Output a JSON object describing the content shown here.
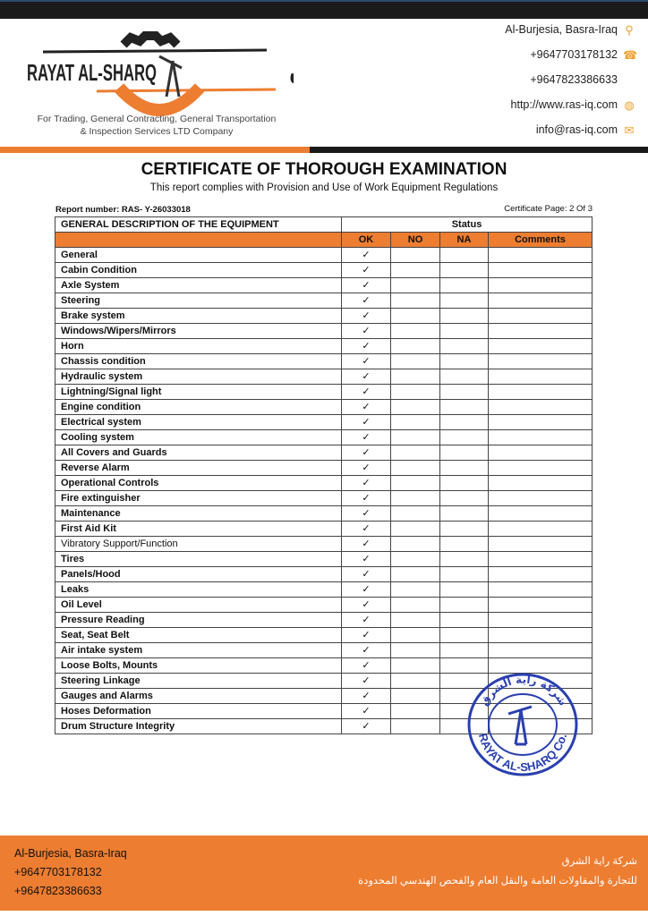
{
  "header": {
    "logo_text_en": "RAYAT AL-SHARQ",
    "logo_text_ar": "راية الشرق",
    "tagline_line1": "For Trading, General Contracting, General Transportation",
    "tagline_line2": "& Inspection Services LTD Company",
    "contact": [
      {
        "text": "Al-Burjesia, Basra-Iraq",
        "icon": "location-pin-icon"
      },
      {
        "text": "+9647703178132",
        "icon": "phone-icon"
      },
      {
        "text": "+9647823386633",
        "icon": ""
      },
      {
        "text": "http://www.ras-iq.com",
        "icon": "globe-icon"
      },
      {
        "text": "info@ras-iq.com",
        "icon": "mail-icon"
      }
    ]
  },
  "document": {
    "title": "CERTIFICATE OF THOROUGH EXAMINATION",
    "subtitle": "This report complies with Provision and Use of Work Equipment Regulations",
    "report_number": "Report number: RAS- Y-26033018",
    "certificate_page": "Certificate Page: 2 Of 3"
  },
  "table": {
    "desc_header": "GENERAL DESCRIPTION OF THE EQUIPMENT",
    "status_header": "Status",
    "columns": [
      "OK",
      "NO",
      "NA",
      "Comments"
    ],
    "check_mark": "✓",
    "rows": [
      {
        "item": "General",
        "status": "OK"
      },
      {
        "item": "Cabin Condition",
        "status": "OK"
      },
      {
        "item": "Axle System",
        "status": "OK"
      },
      {
        "item": "Steering",
        "status": "OK"
      },
      {
        "item": "Brake system",
        "status": "OK"
      },
      {
        "item": "Windows/Wipers/Mirrors",
        "status": "OK"
      },
      {
        "item": "Horn",
        "status": "OK"
      },
      {
        "item": "Chassis condition",
        "status": "OK"
      },
      {
        "item": "Hydraulic system",
        "status": "OK"
      },
      {
        "item": "Lightning/Signal light",
        "status": "OK"
      },
      {
        "item": "Engine condition",
        "status": "OK"
      },
      {
        "item": "Electrical system",
        "status": "OK"
      },
      {
        "item": "Cooling system",
        "status": "OK"
      },
      {
        "item": "All Covers and Guards",
        "status": "OK"
      },
      {
        "item": "Reverse Alarm",
        "status": "OK"
      },
      {
        "item": "Operational Controls",
        "status": "OK"
      },
      {
        "item": "Fire extinguisher",
        "status": "OK"
      },
      {
        "item": "Maintenance",
        "status": "OK"
      },
      {
        "item": "First Aid Kit",
        "status": "OK"
      },
      {
        "item": "Vibratory Support/Function",
        "status": "OK"
      },
      {
        "item": "Tires",
        "status": "OK"
      },
      {
        "item": "Panels/Hood",
        "status": "OK"
      },
      {
        "item": "Leaks",
        "status": "OK"
      },
      {
        "item": "Oil Level",
        "status": "OK"
      },
      {
        "item": "Pressure Reading",
        "status": "OK"
      },
      {
        "item": "Seat, Seat Belt",
        "status": "OK"
      },
      {
        "item": "Air intake system",
        "status": "OK"
      },
      {
        "item": "Loose Bolts, Mounts",
        "status": "OK"
      },
      {
        "item": "Steering Linkage",
        "status": "OK"
      },
      {
        "item": "Gauges and Alarms",
        "status": "OK"
      },
      {
        "item": "Hoses Deformation",
        "status": "OK"
      },
      {
        "item": "Drum Structure Integrity",
        "status": "OK"
      }
    ]
  },
  "stamp": {
    "text_en": "RAYAT AL-SHARQ Co.",
    "text_ar": "شركة راية الشرق"
  },
  "footer": {
    "left": [
      "Al-Burjesia, Basra-Iraq",
      "+9647703178132",
      "+9647823386633"
    ],
    "right": [
      "شركة راية الشرق",
      "للتجارة والمقاولات العامة والنقل العام والفحص الهندسي المحدودة"
    ]
  },
  "colors": {
    "accent": "#ed7d31",
    "dark": "#1a1a1a",
    "stamp": "#2a3fb0"
  }
}
